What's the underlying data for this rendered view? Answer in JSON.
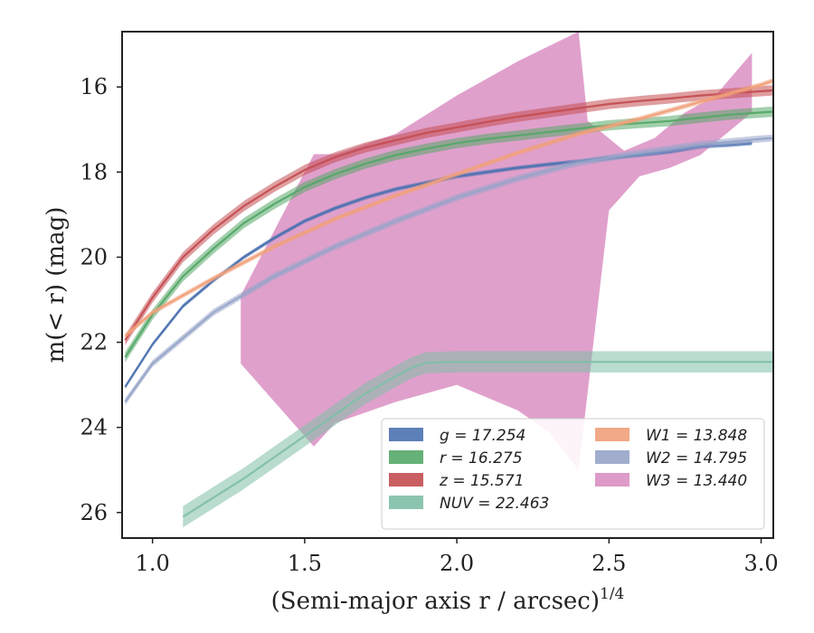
{
  "chart_data": {
    "type": "line",
    "xlabel": "(Semi-major axis r / arcsec)",
    "xlabel_exponent": "1/4",
    "ylabel": "m(< r) (mag)",
    "xlim": [
      0.9,
      3.04
    ],
    "ylim": [
      26.6,
      14.7
    ],
    "y_inverted": true,
    "grid": false,
    "legend_position": "lower-right",
    "x_ticks": [
      "1.0",
      "1.5",
      "2.0",
      "2.5",
      "3.0"
    ],
    "y_ticks": [
      "16",
      "18",
      "20",
      "22",
      "24",
      "26"
    ],
    "legend": [
      {
        "label": "g = 17.254",
        "color": "#4c72b0"
      },
      {
        "label": "r = 16.275",
        "color": "#55a868"
      },
      {
        "label": "z = 15.571",
        "color": "#c44e52"
      },
      {
        "label": "NUV = 22.463",
        "color": "#7fbfa6"
      },
      {
        "label": "W1 = 13.848",
        "color": "#f0a07a"
      },
      {
        "label": "W2 = 14.795",
        "color": "#97a4c8"
      },
      {
        "label": "W3 = 13.440",
        "color": "#da8fc3"
      }
    ],
    "series": [
      {
        "name": "g",
        "color": "#4c72b0",
        "x": [
          0.91,
          1.0,
          1.1,
          1.2,
          1.3,
          1.4,
          1.5,
          1.6,
          1.7,
          1.8,
          1.9,
          2.0,
          2.1,
          2.2,
          2.3,
          2.4,
          2.5,
          2.6,
          2.7,
          2.8,
          2.9,
          2.97
        ],
        "y": [
          23.05,
          22.05,
          21.15,
          20.55,
          20.0,
          19.55,
          19.15,
          18.85,
          18.6,
          18.4,
          18.25,
          18.1,
          18.0,
          17.9,
          17.82,
          17.75,
          17.67,
          17.6,
          17.52,
          17.4,
          17.36,
          17.32
        ],
        "band": 0.05
      },
      {
        "name": "r",
        "color": "#55a868",
        "x": [
          0.91,
          1.0,
          1.1,
          1.2,
          1.3,
          1.4,
          1.5,
          1.6,
          1.7,
          1.8,
          1.9,
          2.0,
          2.1,
          2.2,
          2.3,
          2.4,
          2.5,
          2.6,
          2.7,
          2.8,
          2.9,
          3.0,
          3.04
        ],
        "y": [
          22.35,
          21.35,
          20.45,
          19.8,
          19.2,
          18.75,
          18.35,
          18.05,
          17.8,
          17.6,
          17.45,
          17.32,
          17.22,
          17.14,
          17.06,
          16.98,
          16.9,
          16.85,
          16.8,
          16.72,
          16.65,
          16.6,
          16.58
        ],
        "band": 0.12
      },
      {
        "name": "z",
        "color": "#c44e52",
        "x": [
          0.91,
          1.0,
          1.1,
          1.2,
          1.3,
          1.4,
          1.5,
          1.6,
          1.7,
          1.8,
          1.9,
          2.0,
          2.1,
          2.2,
          2.3,
          2.4,
          2.5,
          2.6,
          2.7,
          2.8,
          2.9,
          3.0,
          3.04
        ],
        "y": [
          21.95,
          20.95,
          20.0,
          19.35,
          18.8,
          18.35,
          17.95,
          17.65,
          17.42,
          17.25,
          17.08,
          16.95,
          16.82,
          16.7,
          16.6,
          16.5,
          16.4,
          16.33,
          16.27,
          16.2,
          16.15,
          16.1,
          16.08
        ],
        "band": 0.12
      },
      {
        "name": "W1",
        "color": "#f0a07a",
        "x": [
          0.91,
          1.0,
          1.2,
          1.4,
          1.6,
          1.8,
          2.0,
          2.2,
          2.4,
          2.6,
          2.8,
          3.0,
          3.04
        ],
        "y": [
          21.85,
          21.3,
          20.5,
          19.75,
          19.1,
          18.55,
          18.05,
          17.55,
          17.1,
          16.75,
          16.35,
          15.95,
          15.85
        ],
        "band": 0.06
      },
      {
        "name": "W2",
        "color": "#97a4c8",
        "x": [
          0.91,
          1.0,
          1.2,
          1.4,
          1.6,
          1.8,
          2.0,
          2.2,
          2.4,
          2.6,
          2.8,
          3.0,
          3.04
        ],
        "y": [
          23.4,
          22.5,
          21.3,
          20.45,
          19.75,
          19.15,
          18.6,
          18.15,
          17.78,
          17.55,
          17.35,
          17.22,
          17.2
        ],
        "band": 0.08
      },
      {
        "name": "NUV",
        "color": "#7fbfa6",
        "x": [
          1.1,
          1.2,
          1.3,
          1.4,
          1.5,
          1.6,
          1.7,
          1.8,
          1.85,
          1.9,
          2.0,
          2.2,
          2.4,
          2.6,
          2.8,
          3.0,
          3.04
        ],
        "y": [
          26.1,
          25.65,
          25.2,
          24.7,
          24.2,
          23.7,
          23.2,
          22.8,
          22.6,
          22.48,
          22.46,
          22.46,
          22.46,
          22.46,
          22.46,
          22.46,
          22.46
        ],
        "band": 0.25
      }
    ],
    "w3_band": {
      "name": "W3",
      "color": "#da8fc3",
      "upper": {
        "x": [
          1.29,
          1.53,
          1.6,
          1.8,
          2.0,
          2.2,
          2.4,
          2.43,
          2.55,
          2.65,
          2.75,
          2.85,
          2.97
        ],
        "y": [
          20.9,
          17.58,
          17.58,
          17.1,
          16.2,
          15.4,
          14.7,
          16.8,
          17.5,
          17.2,
          16.6,
          16.2,
          15.2
        ]
      },
      "lower": {
        "x": [
          1.29,
          1.53,
          1.6,
          1.8,
          2.0,
          2.2,
          2.3,
          2.4,
          2.5,
          2.6,
          2.7,
          2.8,
          2.97
        ],
        "y": [
          22.5,
          24.45,
          23.9,
          23.4,
          23.0,
          23.6,
          24.1,
          25.0,
          18.9,
          18.1,
          17.9,
          17.6,
          16.6
        ]
      }
    }
  }
}
